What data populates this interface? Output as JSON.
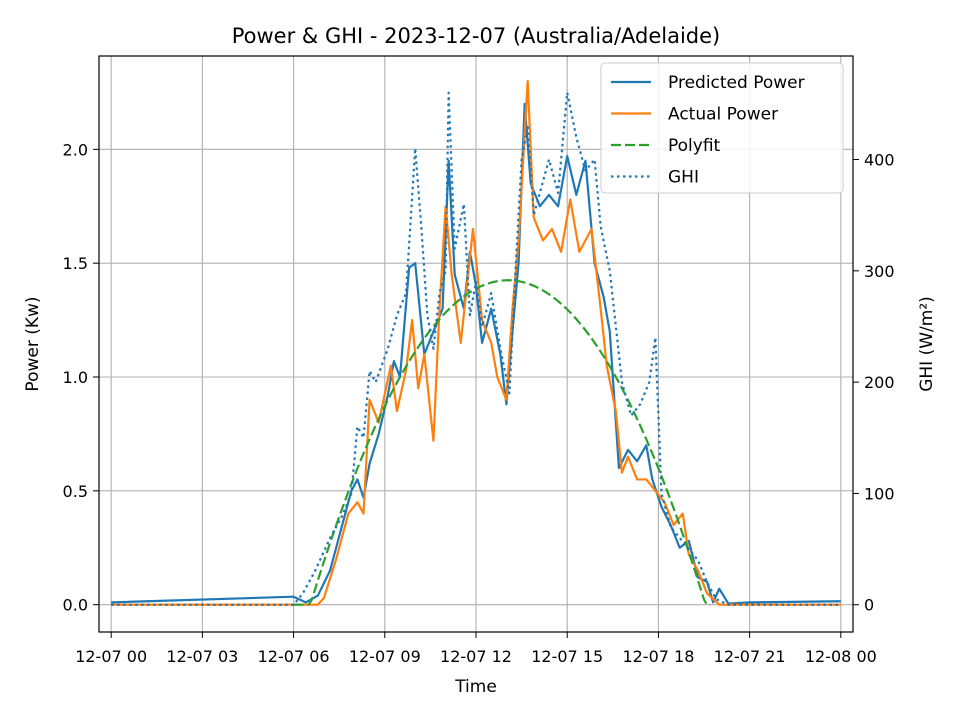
{
  "chart_data": {
    "type": "line",
    "title": "Power & GHI - 2023-12-07 (Australia/Adelaide)",
    "xlabel": "Time",
    "ylabel_left": "Power (Kw)",
    "ylabel_right": "GHI (W/m²)",
    "x_unit": "hour",
    "xlim": [
      -0.4,
      24.4
    ],
    "ylim_left": [
      -0.12,
      2.41
    ],
    "ylim_right": [
      -24.5,
      493
    ],
    "x_ticks": [
      0,
      3,
      6,
      9,
      12,
      15,
      18,
      21,
      24
    ],
    "x_tick_labels": [
      "12-07 00",
      "12-07 03",
      "12-07 06",
      "12-07 09",
      "12-07 12",
      "12-07 15",
      "12-07 18",
      "12-07 21",
      "12-08 00"
    ],
    "y_left_ticks": [
      0.0,
      0.5,
      1.0,
      1.5,
      2.0
    ],
    "y_left_tick_labels": [
      "0.0",
      "0.5",
      "1.0",
      "1.5",
      "2.0"
    ],
    "y_right_ticks": [
      0,
      100,
      200,
      300,
      400
    ],
    "y_right_tick_labels": [
      "0",
      "100",
      "200",
      "300",
      "400"
    ],
    "grid": true,
    "legend_position": "top-right",
    "series": [
      {
        "name": "Predicted Power",
        "axis": "left",
        "color": "#1f77b4",
        "style": "solid",
        "points": [
          [
            0,
            0.01
          ],
          [
            6,
            0.035
          ],
          [
            6.4,
            0.01
          ],
          [
            6.8,
            0.04
          ],
          [
            7.2,
            0.15
          ],
          [
            7.5,
            0.3
          ],
          [
            7.9,
            0.5
          ],
          [
            8.1,
            0.55
          ],
          [
            8.3,
            0.47
          ],
          [
            8.5,
            0.62
          ],
          [
            8.8,
            0.75
          ],
          [
            9.1,
            0.92
          ],
          [
            9.3,
            1.07
          ],
          [
            9.5,
            1.0
          ],
          [
            9.8,
            1.48
          ],
          [
            10.0,
            1.5
          ],
          [
            10.3,
            1.1
          ],
          [
            10.6,
            1.2
          ],
          [
            10.9,
            1.3
          ],
          [
            11.1,
            1.95
          ],
          [
            11.3,
            1.45
          ],
          [
            11.6,
            1.3
          ],
          [
            11.8,
            1.55
          ],
          [
            12.0,
            1.4
          ],
          [
            12.2,
            1.15
          ],
          [
            12.5,
            1.3
          ],
          [
            12.8,
            1.1
          ],
          [
            13.0,
            0.88
          ],
          [
            13.2,
            1.2
          ],
          [
            13.4,
            1.5
          ],
          [
            13.6,
            2.2
          ],
          [
            13.8,
            1.85
          ],
          [
            14.1,
            1.75
          ],
          [
            14.4,
            1.8
          ],
          [
            14.7,
            1.75
          ],
          [
            15.0,
            1.97
          ],
          [
            15.3,
            1.8
          ],
          [
            15.6,
            1.95
          ],
          [
            15.9,
            1.5
          ],
          [
            16.2,
            1.35
          ],
          [
            16.4,
            1.2
          ],
          [
            16.7,
            0.6
          ],
          [
            17.0,
            0.68
          ],
          [
            17.3,
            0.63
          ],
          [
            17.6,
            0.7
          ],
          [
            17.8,
            0.55
          ],
          [
            18.1,
            0.43
          ],
          [
            18.4,
            0.35
          ],
          [
            18.7,
            0.25
          ],
          [
            19.0,
            0.28
          ],
          [
            19.3,
            0.12
          ],
          [
            19.6,
            0.1
          ],
          [
            19.8,
            0.01
          ],
          [
            20.0,
            0.07
          ],
          [
            20.3,
            0.005
          ],
          [
            21.0,
            0.01
          ],
          [
            24,
            0.015
          ]
        ]
      },
      {
        "name": "Actual Power",
        "axis": "left",
        "color": "#ff7f0e",
        "style": "solid",
        "points": [
          [
            0,
            0.0
          ],
          [
            6.0,
            0.0
          ],
          [
            6.8,
            0.0
          ],
          [
            7.0,
            0.03
          ],
          [
            7.4,
            0.2
          ],
          [
            7.8,
            0.4
          ],
          [
            8.1,
            0.45
          ],
          [
            8.3,
            0.4
          ],
          [
            8.5,
            0.9
          ],
          [
            8.8,
            0.8
          ],
          [
            9.2,
            1.05
          ],
          [
            9.4,
            0.85
          ],
          [
            9.7,
            1.03
          ],
          [
            9.9,
            1.25
          ],
          [
            10.1,
            0.95
          ],
          [
            10.3,
            1.1
          ],
          [
            10.6,
            0.72
          ],
          [
            10.8,
            1.3
          ],
          [
            11.0,
            1.75
          ],
          [
            11.2,
            1.45
          ],
          [
            11.5,
            1.15
          ],
          [
            11.9,
            1.65
          ],
          [
            12.2,
            1.25
          ],
          [
            12.5,
            1.15
          ],
          [
            12.7,
            1.0
          ],
          [
            13.0,
            0.9
          ],
          [
            13.2,
            1.3
          ],
          [
            13.4,
            1.6
          ],
          [
            13.7,
            2.3
          ],
          [
            13.9,
            1.7
          ],
          [
            14.2,
            1.6
          ],
          [
            14.5,
            1.65
          ],
          [
            14.8,
            1.55
          ],
          [
            15.1,
            1.78
          ],
          [
            15.4,
            1.55
          ],
          [
            15.8,
            1.65
          ],
          [
            16.1,
            1.3
          ],
          [
            16.3,
            1.05
          ],
          [
            16.6,
            0.85
          ],
          [
            16.8,
            0.58
          ],
          [
            17.0,
            0.65
          ],
          [
            17.3,
            0.55
          ],
          [
            17.6,
            0.55
          ],
          [
            17.9,
            0.5
          ],
          [
            18.2,
            0.45
          ],
          [
            18.5,
            0.35
          ],
          [
            18.8,
            0.4
          ],
          [
            19.0,
            0.22
          ],
          [
            19.3,
            0.15
          ],
          [
            19.6,
            0.05
          ],
          [
            20.0,
            0.0
          ],
          [
            24,
            0.0
          ]
        ]
      },
      {
        "name": "Polyfit",
        "axis": "left",
        "color": "#2ca02c",
        "style": "dashed",
        "polyfit": {
          "center": 13.05,
          "peak": 1.425,
          "half_width": 6.5
        },
        "x_range": [
          6.0,
          19.7
        ]
      },
      {
        "name": "GHI",
        "axis": "right",
        "color": "#1f77b4",
        "style": "dotted",
        "points": [
          [
            0,
            0
          ],
          [
            6.0,
            0
          ],
          [
            6.3,
            10
          ],
          [
            6.7,
            30
          ],
          [
            7.2,
            60
          ],
          [
            7.6,
            80
          ],
          [
            7.9,
            100
          ],
          [
            8.1,
            160
          ],
          [
            8.3,
            150
          ],
          [
            8.5,
            210
          ],
          [
            8.7,
            200
          ],
          [
            9.1,
            230
          ],
          [
            9.4,
            260
          ],
          [
            9.7,
            280
          ],
          [
            10.0,
            410
          ],
          [
            10.2,
            340
          ],
          [
            10.4,
            260
          ],
          [
            10.6,
            230
          ],
          [
            10.8,
            280
          ],
          [
            11.0,
            300
          ],
          [
            11.1,
            460
          ],
          [
            11.3,
            320
          ],
          [
            11.6,
            360
          ],
          [
            11.8,
            260
          ],
          [
            12.0,
            290
          ],
          [
            12.2,
            250
          ],
          [
            12.5,
            280
          ],
          [
            12.8,
            230
          ],
          [
            13.1,
            190
          ],
          [
            13.3,
            300
          ],
          [
            13.5,
            400
          ],
          [
            13.7,
            430
          ],
          [
            13.9,
            350
          ],
          [
            14.2,
            380
          ],
          [
            14.4,
            400
          ],
          [
            14.7,
            370
          ],
          [
            15.0,
            460
          ],
          [
            15.3,
            420
          ],
          [
            15.6,
            390
          ],
          [
            15.9,
            400
          ],
          [
            16.1,
            340
          ],
          [
            16.4,
            300
          ],
          [
            16.8,
            200
          ],
          [
            17.1,
            170
          ],
          [
            17.4,
            180
          ],
          [
            17.7,
            200
          ],
          [
            17.9,
            240
          ],
          [
            18.1,
            100
          ],
          [
            18.4,
            70
          ],
          [
            18.7,
            60
          ],
          [
            19.0,
            50
          ],
          [
            19.3,
            40
          ],
          [
            19.6,
            20
          ],
          [
            19.9,
            5
          ],
          [
            20.3,
            0
          ],
          [
            24,
            0
          ]
        ]
      }
    ]
  }
}
